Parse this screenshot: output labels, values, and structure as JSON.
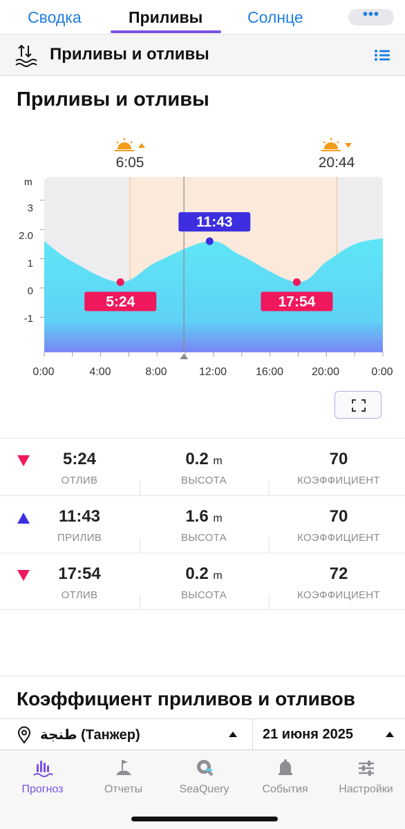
{
  "top_tabs": [
    {
      "label": "Сводка",
      "active": false
    },
    {
      "label": "Приливы",
      "active": true
    },
    {
      "label": "Солнце",
      "active": false
    }
  ],
  "more_label": "•••",
  "title_bar": {
    "title": "Приливы и отливы"
  },
  "section_title": "Приливы и отливы",
  "sun": {
    "sunrise": "6:05",
    "sunset": "20:44"
  },
  "colors": {
    "accent": "#7a4fe0",
    "high": "#3d2fe0",
    "low": "#f0185c",
    "water": "#5fe3f5",
    "sun": "#f39a1b"
  },
  "chart_data": {
    "type": "area",
    "ylabel": "m",
    "y_ticks": [
      {
        "value": 3,
        "label": "3"
      },
      {
        "value": 2,
        "label": "2.0"
      },
      {
        "value": 1,
        "label": "1"
      },
      {
        "value": 0,
        "label": "0"
      },
      {
        "value": -1,
        "label": "-1"
      }
    ],
    "ylim": [
      -2.2,
      3.8
    ],
    "x_ticks": [
      "0:00",
      "4:00",
      "8:00",
      "12:00",
      "16:00",
      "20:00",
      "0:00"
    ],
    "xlim_hours": [
      0,
      24
    ],
    "sunrise_hour": 6.08,
    "sunset_hour": 20.73,
    "now_hour": 9.9,
    "series": [
      {
        "x": [
          "0:00",
          "2:00",
          "5:24",
          "8:00",
          "11:43",
          "14:00",
          "17:54",
          "20:00",
          "22:00",
          "24:00"
        ],
        "y": [
          1.6,
          0.9,
          0.2,
          0.9,
          1.6,
          1.1,
          0.2,
          0.9,
          1.5,
          1.7
        ]
      }
    ],
    "events": [
      {
        "time": "5:24",
        "hour": 5.4,
        "height": 0.2,
        "kind": "low"
      },
      {
        "time": "11:43",
        "hour": 11.72,
        "height": 1.6,
        "kind": "high"
      },
      {
        "time": "17:54",
        "hour": 17.9,
        "height": 0.2,
        "kind": "low"
      }
    ]
  },
  "tides": [
    {
      "kind": "low",
      "time": "5:24",
      "type_label": "ОТЛИВ",
      "height": "0.2",
      "unit": "m",
      "height_label": "ВЫСОТА",
      "coef": "70",
      "coef_label": "КОЭФФИЦИЕНТ"
    },
    {
      "kind": "high",
      "time": "11:43",
      "type_label": "ПРИЛИВ",
      "height": "1.6",
      "unit": "m",
      "height_label": "ВЫСОТА",
      "coef": "70",
      "coef_label": "КОЭФФИЦИЕНТ"
    },
    {
      "kind": "low",
      "time": "17:54",
      "type_label": "ОТЛИВ",
      "height": "0.2",
      "unit": "m",
      "height_label": "ВЫСОТА",
      "coef": "72",
      "coef_label": "КОЭФФИЦИЕНТ"
    }
  ],
  "coef_title": "Коэффициент приливов и отливов",
  "filter": {
    "location": "طنجة (Танжер)",
    "date": "21 июня 2025"
  },
  "nav": [
    {
      "label": "Прогноз",
      "icon": "forecast-icon",
      "active": true
    },
    {
      "label": "Отчеты",
      "icon": "reports-icon",
      "active": false
    },
    {
      "label": "SeaQuery",
      "icon": "seaquery-icon",
      "active": false
    },
    {
      "label": "События",
      "icon": "bell-icon",
      "active": false
    },
    {
      "label": "Настройки",
      "icon": "sliders-icon",
      "active": false
    }
  ]
}
